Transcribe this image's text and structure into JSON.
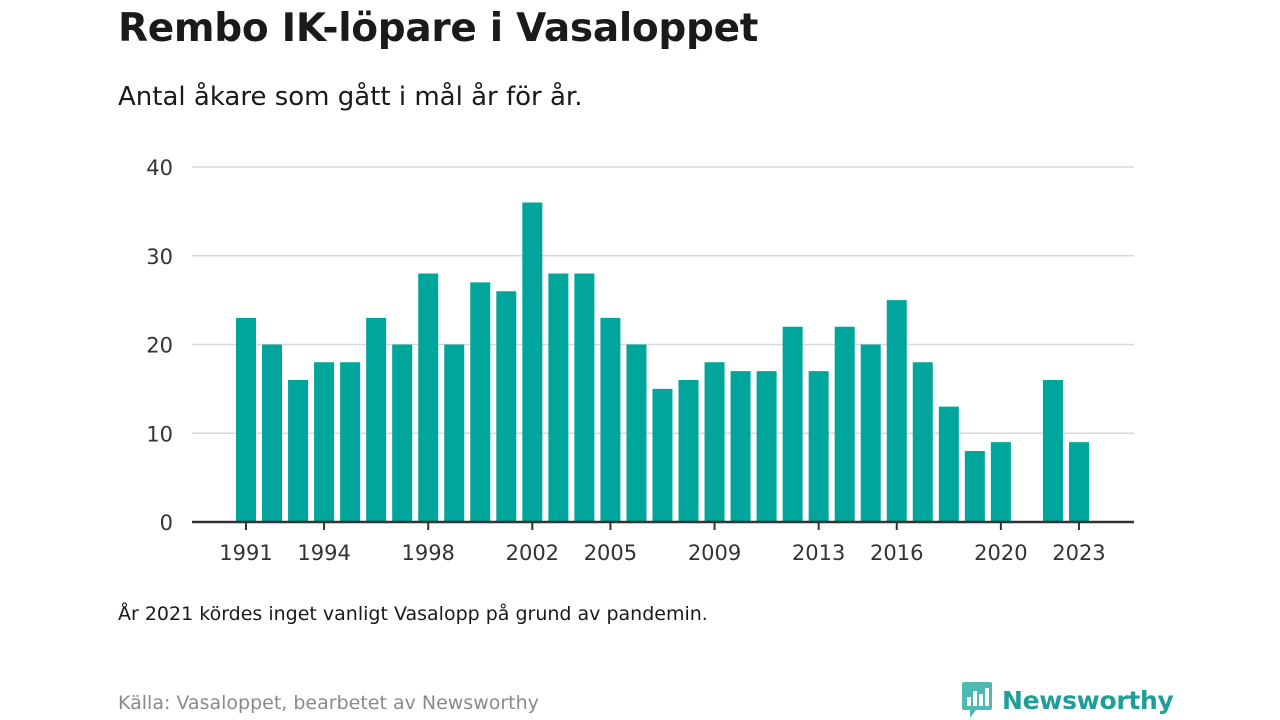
{
  "header": {
    "title": "Rembo IK-löpare i Vasaloppet",
    "subtitle": "Antal åkare som gått i mål år för år."
  },
  "footer": {
    "note": "År 2021 kördes inget vanligt Vasalopp på grund av pandemin.",
    "source": "Källa: Vasaloppet, bearbetet av Newsworthy",
    "brand": "Newsworthy",
    "brand_icon": "newsworthy-logo-icon"
  },
  "colors": {
    "bar": "#00a59b",
    "grid": "#d9d9d9",
    "axis": "#333333",
    "brand": "#1e9e99"
  },
  "chart_data": {
    "type": "bar",
    "categories": [
      "1991",
      "1992",
      "1993",
      "1994",
      "1995",
      "1996",
      "1997",
      "1998",
      "1999",
      "2000",
      "2001",
      "2002",
      "2003",
      "2004",
      "2005",
      "2006",
      "2007",
      "2008",
      "2009",
      "2010",
      "2011",
      "2012",
      "2013",
      "2014",
      "2015",
      "2016",
      "2017",
      "2018",
      "2019",
      "2020",
      "2021",
      "2022",
      "2023"
    ],
    "values": [
      23,
      20,
      16,
      18,
      18,
      23,
      20,
      28,
      20,
      27,
      26,
      36,
      28,
      28,
      23,
      20,
      15,
      16,
      18,
      17,
      17,
      22,
      17,
      22,
      20,
      25,
      18,
      13,
      8,
      9,
      null,
      16,
      9
    ],
    "x_tick_labels": [
      "1991",
      "1994",
      "1998",
      "2002",
      "2005",
      "2009",
      "2013",
      "2016",
      "2020",
      "2023"
    ],
    "y_ticks": [
      0,
      10,
      20,
      30,
      40
    ],
    "ylim": [
      0,
      40
    ],
    "xlabel": "",
    "ylabel": "",
    "grid": true,
    "legend": "none"
  }
}
